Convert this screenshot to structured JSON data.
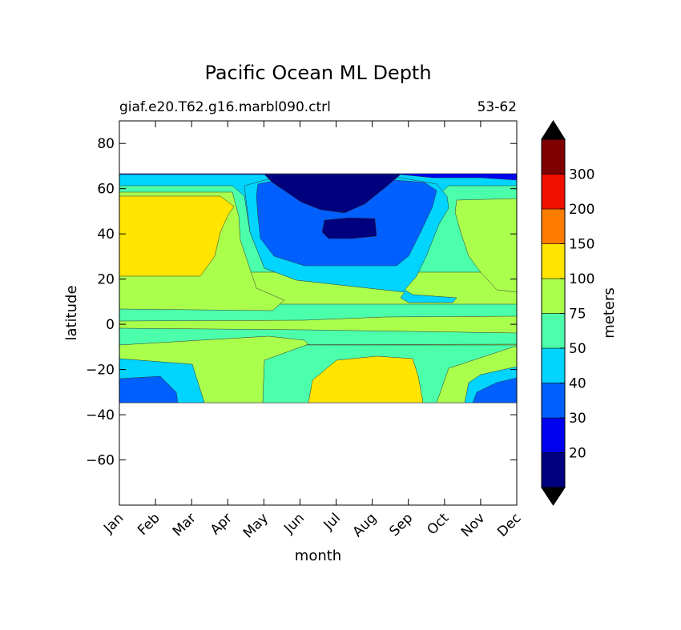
{
  "chart_data": {
    "type": "heatmap",
    "title": "Pacific Ocean ML Depth",
    "subtitle_left": "giaf.e20.T62.g16.marbl090.ctrl",
    "subtitle_right": "53-62",
    "xlabel": "month",
    "ylabel": "latitude",
    "x_categories": [
      "Jan",
      "Feb",
      "Mar",
      "Apr",
      "May",
      "Jun",
      "Jul",
      "Aug",
      "Sep",
      "Oct",
      "Nov",
      "Dec"
    ],
    "ylim": [
      -80,
      90
    ],
    "y_ticks": [
      "80",
      "60",
      "40",
      "20",
      "0",
      "−20",
      "−40",
      "−60"
    ],
    "y_tick_values": [
      80,
      60,
      40,
      20,
      0,
      -20,
      -40,
      -60
    ],
    "data_lat_range": [
      -34,
      67
    ],
    "colorbar": {
      "label": "meters",
      "levels": [
        20,
        30,
        40,
        50,
        75,
        100,
        150,
        200,
        300
      ],
      "tick_labels": [
        "20",
        "30",
        "40",
        "50",
        "75",
        "100",
        "150",
        "200",
        "300"
      ],
      "colors": [
        "#00007f",
        "#0000f1",
        "#0060ff",
        "#00d4ff",
        "#4cffaa",
        "#aaff4c",
        "#ffe500",
        "#ff7c00",
        "#f10f00",
        "#7f0000"
      ],
      "extend": "both"
    },
    "regions": [
      {
        "lat_band": "55-67",
        "months": "May-Sep",
        "depth_class": "<20"
      },
      {
        "lat_band": "38-47",
        "months": "Jul-Aug",
        "depth_class": "<20"
      },
      {
        "lat_band": "20-55",
        "months": "Jan-Mar",
        "depth_class": "100-150"
      },
      {
        "lat_band": "-34 to -15",
        "months": "Jul-Sep",
        "depth_class": "100-150"
      },
      {
        "lat_band": "-34 to -15",
        "months": "Jan-Mar",
        "depth_class": "30-50"
      },
      {
        "lat_band": "-34 to -20",
        "months": "Nov-Dec",
        "depth_class": "30-50"
      }
    ]
  }
}
